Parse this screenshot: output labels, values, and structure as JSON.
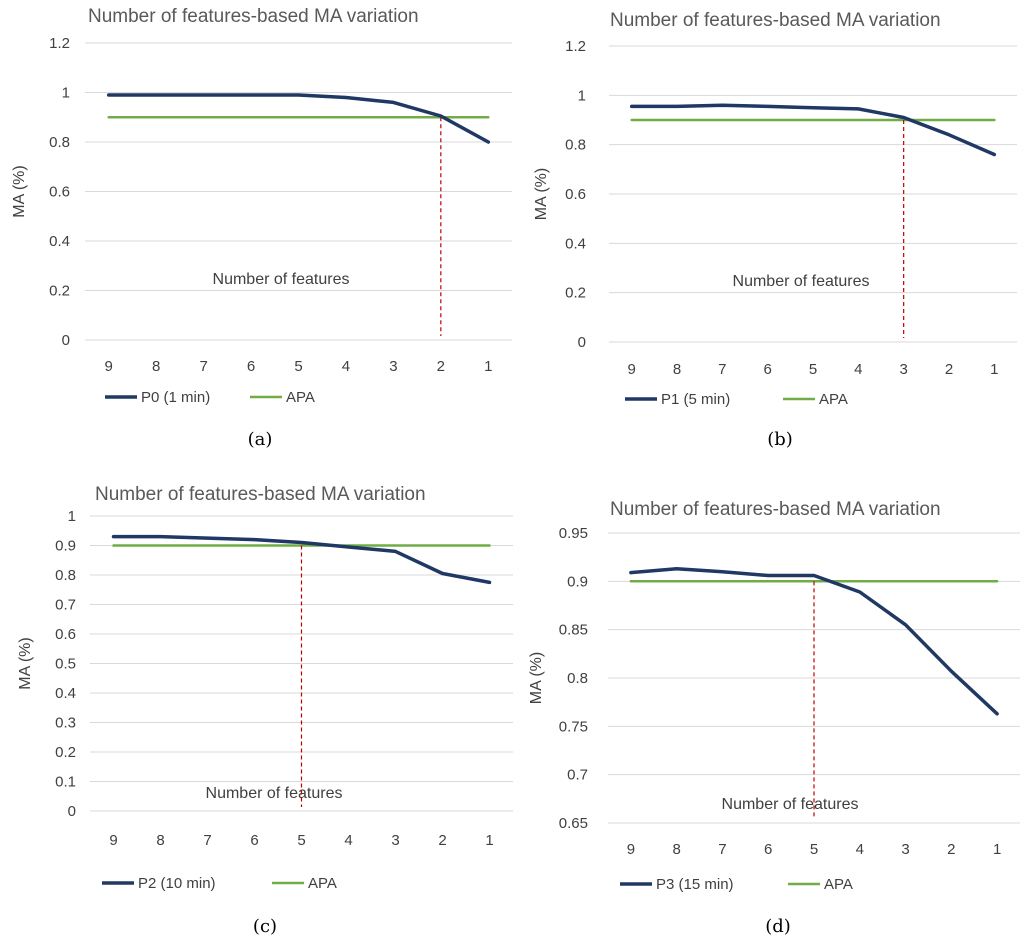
{
  "chart_data": [
    {
      "type": "line",
      "panel": "(a)",
      "title": "Number of features-based MA variation",
      "xlabel": "Number of features",
      "ylabel": "MA (%)",
      "categories": [
        "9",
        "8",
        "7",
        "6",
        "5",
        "4",
        "3",
        "2",
        "1"
      ],
      "ylim": [
        0,
        1.2
      ],
      "yticks": [
        "0",
        "0.2",
        "0.4",
        "0.6",
        "0.8",
        "1",
        "1.2"
      ],
      "series": [
        {
          "name": "P0 (1 min)",
          "color": "#203864",
          "values": [
            0.99,
            0.99,
            0.99,
            0.99,
            0.99,
            0.98,
            0.96,
            0.905,
            0.8
          ]
        },
        {
          "name": "APA",
          "color": "#70ad47",
          "values": [
            0.9,
            0.9,
            0.9,
            0.9,
            0.9,
            0.9,
            0.9,
            0.9,
            0.9
          ]
        }
      ],
      "marker_x": "2",
      "marker_color": "#c00000",
      "grid": true,
      "legend": "bottom"
    },
    {
      "type": "line",
      "panel": "(b)",
      "title": "Number of features-based MA variation",
      "xlabel": "Number of features",
      "ylabel": "MA (%)",
      "categories": [
        "9",
        "8",
        "7",
        "6",
        "5",
        "4",
        "3",
        "2",
        "1"
      ],
      "ylim": [
        0,
        1.2
      ],
      "yticks": [
        "0",
        "0.2",
        "0.4",
        "0.6",
        "0.8",
        "1",
        "1.2"
      ],
      "series": [
        {
          "name": "P1 (5 min)",
          "color": "#203864",
          "values": [
            0.955,
            0.955,
            0.96,
            0.955,
            0.95,
            0.945,
            0.91,
            0.84,
            0.76
          ]
        },
        {
          "name": "APA",
          "color": "#70ad47",
          "values": [
            0.9,
            0.9,
            0.9,
            0.9,
            0.9,
            0.9,
            0.9,
            0.9,
            0.9
          ]
        }
      ],
      "marker_x": "3",
      "marker_color": "#c00000",
      "grid": true,
      "legend": "bottom"
    },
    {
      "type": "line",
      "panel": "(c)",
      "title": "Number of features-based MA variation",
      "xlabel": "Number of features",
      "ylabel": "MA (%)",
      "categories": [
        "9",
        "8",
        "7",
        "6",
        "5",
        "4",
        "3",
        "2",
        "1"
      ],
      "ylim": [
        0,
        1
      ],
      "yticks": [
        "0",
        "0.1",
        "0.2",
        "0.3",
        "0.4",
        "0.5",
        "0.6",
        "0.7",
        "0.8",
        "0.9",
        "1"
      ],
      "series": [
        {
          "name": "P2 (10 min)",
          "color": "#203864",
          "values": [
            0.93,
            0.93,
            0.925,
            0.92,
            0.91,
            0.895,
            0.88,
            0.805,
            0.775
          ]
        },
        {
          "name": "APA",
          "color": "#70ad47",
          "values": [
            0.9,
            0.9,
            0.9,
            0.9,
            0.9,
            0.9,
            0.9,
            0.9,
            0.9
          ]
        }
      ],
      "marker_x": "5",
      "marker_color": "#c00000",
      "grid": true,
      "legend": "bottom"
    },
    {
      "type": "line",
      "panel": "(d)",
      "title": "Number of features-based MA variation",
      "xlabel": "Number of features",
      "ylabel": "MA (%)",
      "categories": [
        "9",
        "8",
        "7",
        "6",
        "5",
        "4",
        "3",
        "2",
        "1"
      ],
      "ylim": [
        0.65,
        0.95
      ],
      "yticks": [
        "0.65",
        "0.7",
        "0.75",
        "0.8",
        "0.85",
        "0.9",
        "0.95"
      ],
      "series": [
        {
          "name": "P3 (15 min)",
          "color": "#203864",
          "values": [
            0.909,
            0.913,
            0.91,
            0.906,
            0.906,
            0.889,
            0.855,
            0.807,
            0.763
          ]
        },
        {
          "name": "APA",
          "color": "#70ad47",
          "values": [
            0.9,
            0.9,
            0.9,
            0.9,
            0.9,
            0.9,
            0.9,
            0.9,
            0.9
          ]
        }
      ],
      "marker_x": "5",
      "marker_color": "#c00000",
      "grid": true,
      "legend": "bottom"
    }
  ]
}
